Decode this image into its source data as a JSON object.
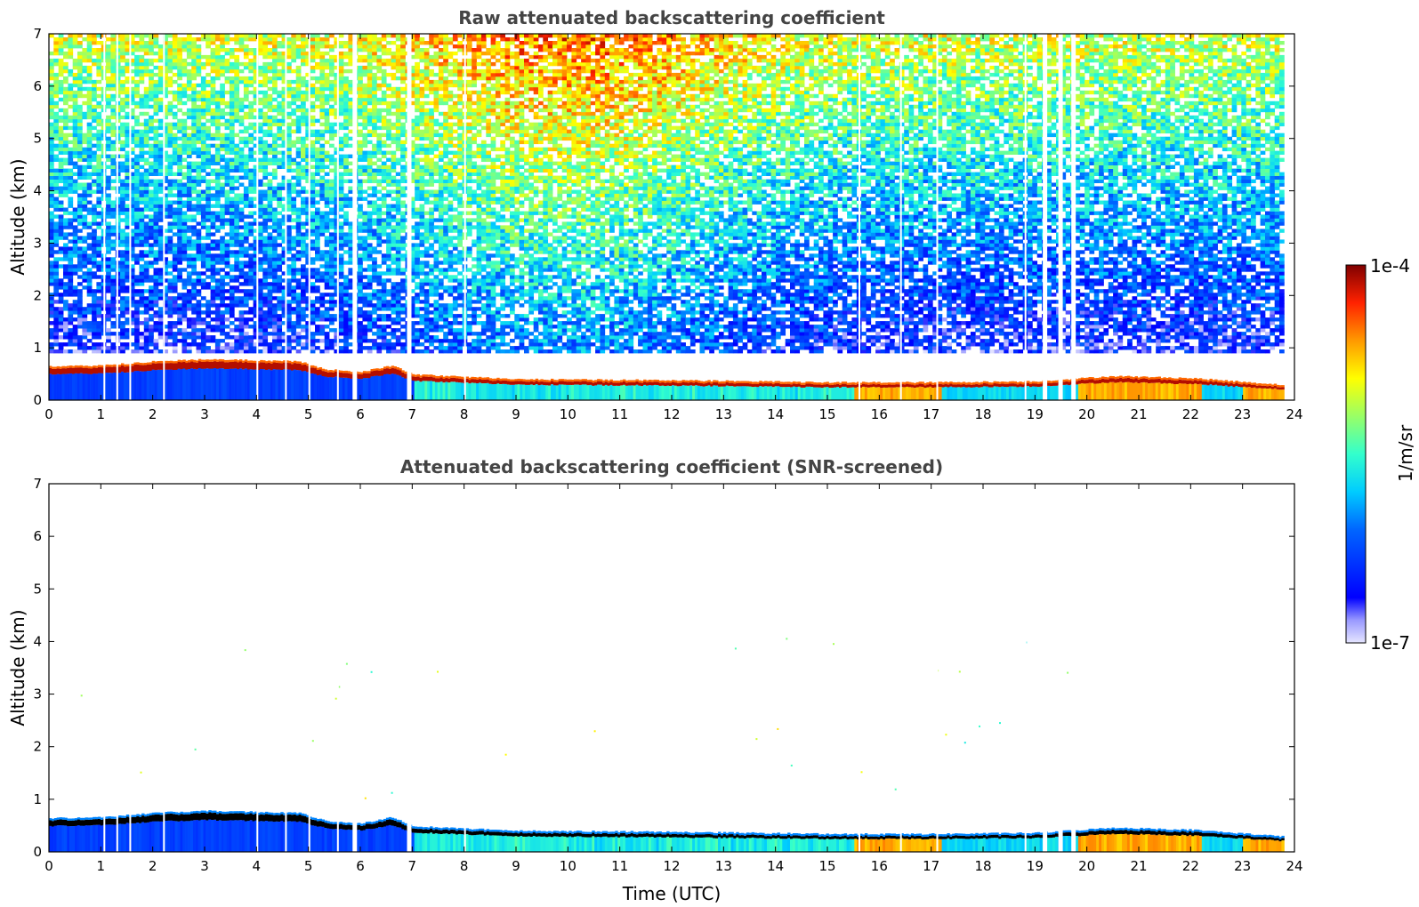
{
  "chart_data": [
    {
      "type": "heatmap",
      "title": "Raw attenuated backscattering coefficient",
      "xlabel": "",
      "ylabel": "Altitude (km)",
      "xlim": [
        0,
        24
      ],
      "ylim": [
        0,
        7
      ],
      "x_ticks": [
        "0",
        "1",
        "2",
        "3",
        "4",
        "5",
        "6",
        "7",
        "8",
        "9",
        "10",
        "11",
        "12",
        "13",
        "14",
        "15",
        "16",
        "17",
        "18",
        "19",
        "20",
        "21",
        "22",
        "23",
        "24"
      ],
      "y_ticks": [
        "0",
        "1",
        "2",
        "3",
        "4",
        "5",
        "6",
        "7"
      ],
      "layer_top_km": [
        {
          "t": 0,
          "h": 0.6
        },
        {
          "t": 1,
          "h": 0.62
        },
        {
          "t": 2,
          "h": 0.7
        },
        {
          "t": 3,
          "h": 0.74
        },
        {
          "t": 4,
          "h": 0.72
        },
        {
          "t": 4.8,
          "h": 0.7
        },
        {
          "t": 5.3,
          "h": 0.55
        },
        {
          "t": 6,
          "h": 0.5
        },
        {
          "t": 6.6,
          "h": 0.62
        },
        {
          "t": 7,
          "h": 0.45
        },
        {
          "t": 9,
          "h": 0.36
        },
        {
          "t": 12,
          "h": 0.34
        },
        {
          "t": 15,
          "h": 0.3
        },
        {
          "t": 17,
          "h": 0.3
        },
        {
          "t": 19,
          "h": 0.32
        },
        {
          "t": 20.5,
          "h": 0.42
        },
        {
          "t": 22,
          "h": 0.38
        },
        {
          "t": 23.8,
          "h": 0.25
        }
      ],
      "data_gaps_utc": [
        1.05,
        1.3,
        1.55,
        2.2,
        4.0,
        4.55,
        5.0,
        5.55,
        5.85,
        6.9,
        8.0,
        15.6,
        16.4,
        17.1,
        18.8,
        19.15,
        19.45,
        19.7
      ],
      "noise_description": "high-altitude noise increasing with altitude, strongest around 9-11 UTC"
    },
    {
      "type": "heatmap",
      "title": "Attenuated backscattering coefficient (SNR-screened)",
      "xlabel": "Time (UTC)",
      "ylabel": "Altitude (km)",
      "xlim": [
        0,
        24
      ],
      "ylim": [
        0,
        7
      ],
      "x_ticks": [
        "0",
        "1",
        "2",
        "3",
        "4",
        "5",
        "6",
        "7",
        "8",
        "9",
        "10",
        "11",
        "12",
        "13",
        "14",
        "15",
        "16",
        "17",
        "18",
        "19",
        "20",
        "21",
        "22",
        "23",
        "24"
      ],
      "y_ticks": [
        "0",
        "1",
        "2",
        "3",
        "4",
        "5",
        "6",
        "7"
      ]
    }
  ],
  "colorbar": {
    "label": "1/m/sr",
    "max_label": "1e-4",
    "min_label": "1e-7",
    "scale": "log",
    "range": [
      1e-07,
      0.0001
    ]
  }
}
